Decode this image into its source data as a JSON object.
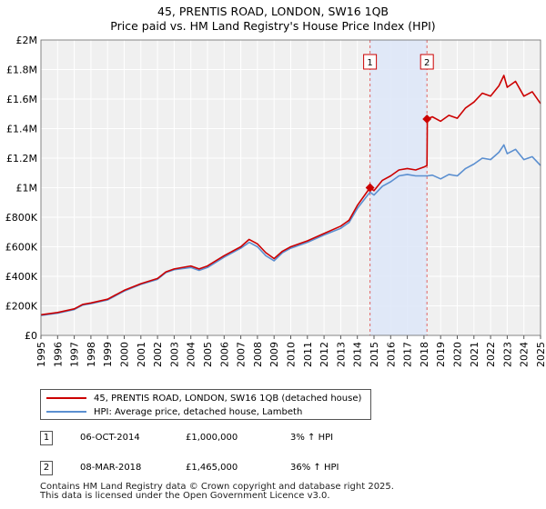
{
  "chart_data": {
    "type": "line",
    "title": "45, PRENTIS ROAD, LONDON, SW16 1QB",
    "subtitle": "Price paid vs. HM Land Registry's House Price Index (HPI)",
    "xlim": [
      1995,
      2025
    ],
    "ylim": [
      0,
      2000000
    ],
    "x_ticks": [
      "1995",
      "1996",
      "1997",
      "1998",
      "1999",
      "2000",
      "2001",
      "2002",
      "2003",
      "2004",
      "2005",
      "2006",
      "2007",
      "2008",
      "2009",
      "2010",
      "2011",
      "2012",
      "2013",
      "2014",
      "2015",
      "2016",
      "2017",
      "2018",
      "2019",
      "2020",
      "2021",
      "2022",
      "2023",
      "2024",
      "2025"
    ],
    "y_ticks": [
      {
        "value": 0,
        "label": "£0"
      },
      {
        "value": 200000,
        "label": "£200K"
      },
      {
        "value": 400000,
        "label": "£400K"
      },
      {
        "value": 600000,
        "label": "£600K"
      },
      {
        "value": 800000,
        "label": "£800K"
      },
      {
        "value": 1000000,
        "label": "£1M"
      },
      {
        "value": 1200000,
        "label": "£1.2M"
      },
      {
        "value": 1400000,
        "label": "£1.4M"
      },
      {
        "value": 1600000,
        "label": "£1.6M"
      },
      {
        "value": 1800000,
        "label": "£1.8M"
      },
      {
        "value": 2000000,
        "label": "£2M"
      }
    ],
    "shaded_region": [
      2014.76,
      2018.18
    ],
    "series": [
      {
        "name": "45, PRENTIS ROAD, LONDON, SW16 1QB (detached house)",
        "color": "#cc0000",
        "x": [
          1995.0,
          1996.0,
          1997.0,
          1997.5,
          1998.0,
          1999.0,
          2000.0,
          2001.0,
          2002.0,
          2002.5,
          2003.0,
          2004.0,
          2004.5,
          2005.0,
          2006.0,
          2007.0,
          2007.5,
          2008.0,
          2008.5,
          2009.0,
          2009.5,
          2010.0,
          2011.0,
          2012.0,
          2013.0,
          2013.5,
          2014.0,
          2014.76,
          2015.0,
          2015.5,
          2016.0,
          2016.5,
          2017.0,
          2017.5,
          2018.0,
          2018.18,
          2018.2,
          2018.5,
          2019.0,
          2019.5,
          2020.0,
          2020.5,
          2021.0,
          2021.5,
          2022.0,
          2022.5,
          2022.8,
          2023.0,
          2023.5,
          2024.0,
          2024.5,
          2025.0
        ],
        "y": [
          140000,
          155000,
          180000,
          210000,
          220000,
          245000,
          305000,
          350000,
          385000,
          430000,
          450000,
          470000,
          450000,
          470000,
          540000,
          600000,
          650000,
          620000,
          560000,
          520000,
          570000,
          600000,
          640000,
          690000,
          740000,
          780000,
          880000,
          1000000,
          980000,
          1050000,
          1080000,
          1120000,
          1130000,
          1120000,
          1140000,
          1150000,
          1465000,
          1480000,
          1450000,
          1490000,
          1470000,
          1540000,
          1580000,
          1640000,
          1620000,
          1690000,
          1760000,
          1680000,
          1720000,
          1620000,
          1650000,
          1570000
        ]
      },
      {
        "name": "HPI: Average price, detached house, Lambeth",
        "color": "#5b8fd0",
        "x": [
          1995.0,
          1996.0,
          1997.0,
          1997.5,
          1998.0,
          1999.0,
          2000.0,
          2001.0,
          2002.0,
          2002.5,
          2003.0,
          2004.0,
          2004.5,
          2005.0,
          2006.0,
          2007.0,
          2007.5,
          2008.0,
          2008.5,
          2009.0,
          2009.5,
          2010.0,
          2011.0,
          2012.0,
          2013.0,
          2013.5,
          2014.0,
          2014.76,
          2015.0,
          2015.5,
          2016.0,
          2016.5,
          2017.0,
          2017.5,
          2018.0,
          2018.18,
          2018.2,
          2018.5,
          2019.0,
          2019.5,
          2020.0,
          2020.5,
          2021.0,
          2021.5,
          2022.0,
          2022.5,
          2022.8,
          2023.0,
          2023.5,
          2024.0,
          2024.5,
          2025.0
        ],
        "y": [
          135000,
          150000,
          175000,
          205000,
          215000,
          240000,
          300000,
          345000,
          380000,
          425000,
          445000,
          460000,
          440000,
          460000,
          530000,
          590000,
          630000,
          600000,
          540000,
          505000,
          560000,
          590000,
          630000,
          680000,
          725000,
          765000,
          860000,
          970000,
          950000,
          1010000,
          1040000,
          1080000,
          1090000,
          1080000,
          1080000,
          1080000,
          1080000,
          1085000,
          1060000,
          1090000,
          1080000,
          1130000,
          1160000,
          1200000,
          1190000,
          1240000,
          1290000,
          1230000,
          1260000,
          1190000,
          1210000,
          1150000
        ]
      }
    ],
    "sales": [
      {
        "label": "1",
        "date": "06-OCT-2014",
        "x": 2014.76,
        "price": 1000000,
        "price_label": "£1,000,000",
        "hpi_change": "3% ↑ HPI"
      },
      {
        "label": "2",
        "date": "08-MAR-2018",
        "x": 2018.18,
        "price": 1465000,
        "price_label": "£1,465,000",
        "hpi_change": "36% ↑ HPI"
      }
    ],
    "grid": true,
    "legend_position": "bottom"
  },
  "footer": {
    "line1": "Contains HM Land Registry data © Crown copyright and database right 2025.",
    "line2": "This data is licensed under the Open Government Licence v3.0."
  }
}
